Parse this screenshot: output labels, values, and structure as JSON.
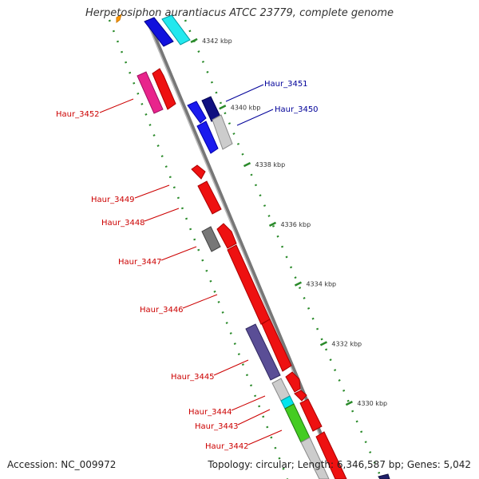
{
  "title": "Herpetosiphon aurantiacus ATCC 23779, complete genome",
  "accession": "Accession: NC_009972",
  "topology": "Topology: circular; Length: 6,346,587 bp; Genes: 5,042",
  "ticks": [
    {
      "label": "4342 kbp",
      "t": 0.045
    },
    {
      "label": "4340 kbp",
      "t": 0.19
    },
    {
      "label": "4338 kbp",
      "t": 0.315
    },
    {
      "label": "4336 kbp",
      "t": 0.445
    },
    {
      "label": "4334 kbp",
      "t": 0.575
    },
    {
      "label": "4332 kbp",
      "t": 0.705
    },
    {
      "label": "4330 kbp",
      "t": 0.835
    }
  ],
  "genes": [
    {
      "name": "Haur_3452",
      "labelColor": "#cc0000",
      "side": "left"
    },
    {
      "name": "Haur_3451",
      "labelColor": "#000099",
      "side": "right"
    },
    {
      "name": "Haur_3450",
      "labelColor": "#000099",
      "side": "right"
    },
    {
      "name": "Haur_3449",
      "labelColor": "#cc0000",
      "side": "left"
    },
    {
      "name": "Haur_3448",
      "labelColor": "#cc0000",
      "side": "left"
    },
    {
      "name": "Haur_3447",
      "labelColor": "#cc0000",
      "side": "left"
    },
    {
      "name": "Haur_3446",
      "labelColor": "#cc0000",
      "side": "left"
    },
    {
      "name": "Haur_3445",
      "labelColor": "#cc0000",
      "side": "left"
    },
    {
      "name": "Haur_3444",
      "labelColor": "#cc0000",
      "side": "left"
    },
    {
      "name": "Haur_3443",
      "labelColor": "#cc0000",
      "side": "left"
    },
    {
      "name": "Haur_3442",
      "labelColor": "#cc0000",
      "side": "left"
    }
  ]
}
